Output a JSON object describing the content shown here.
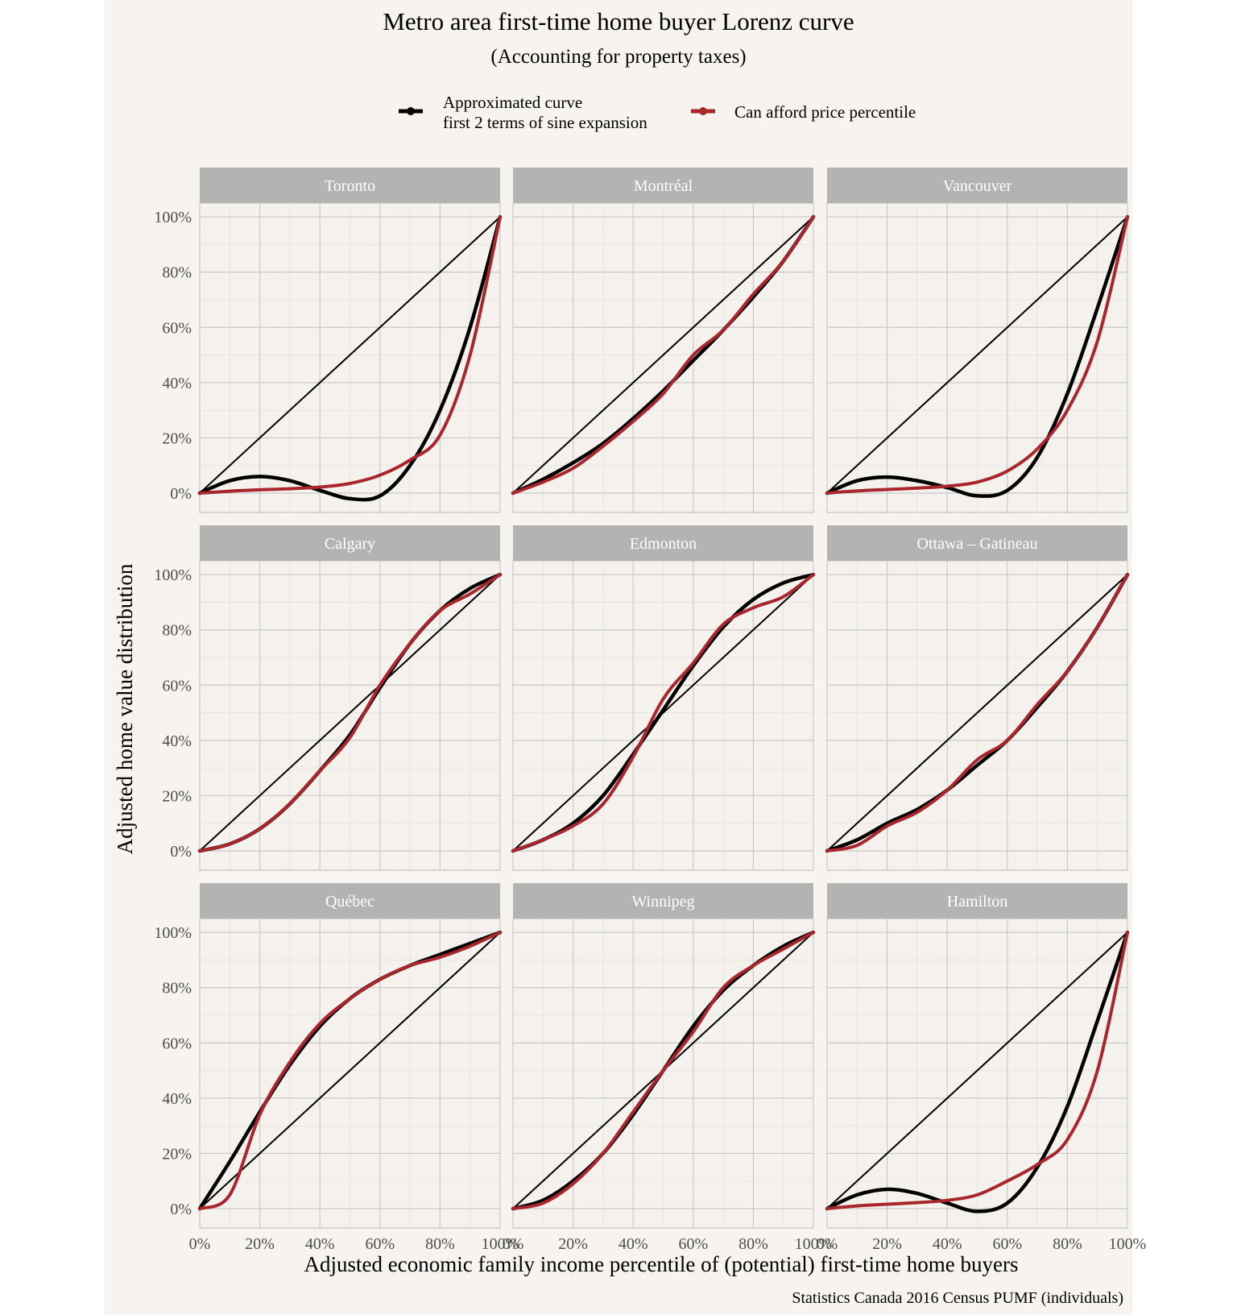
{
  "chart_data": {
    "type": "line",
    "title": "Metro area first-time home buyer Lorenz curve",
    "subtitle": "(Accounting for property taxes)",
    "xlabel": "Adjusted economic family income percentile of (potential) first-time home buyers",
    "ylabel": "Adjusted home value distribution",
    "caption": "Statistics Canada 2016 Census PUMF (individuals)",
    "legend": {
      "placement": "top",
      "entries": [
        {
          "label_line1": "Approximated curve",
          "label_line2": "first 2 terms of sine expansion",
          "color": "#000000"
        },
        {
          "label_line1": "Can afford price percentile",
          "label_line2": "",
          "color": "#a8262c"
        }
      ]
    },
    "x_ticks": [
      "0%",
      "20%",
      "40%",
      "60%",
      "80%",
      "100%"
    ],
    "y_ticks": [
      "0%",
      "20%",
      "40%",
      "60%",
      "80%",
      "100%"
    ],
    "xlim": [
      0,
      1
    ],
    "ylim": [
      -0.07,
      1.05
    ],
    "colors": {
      "panel_bg": "#f5f2ee",
      "page_bg": "#f7f4f0",
      "strip_bg": "#b3b3b3",
      "grid_major": "#c9c9c9",
      "grid_minor": "#e3e1de",
      "approx": "#000000",
      "afford": "#a8262c",
      "equality": "#000000"
    },
    "x": [
      0,
      0.1,
      0.2,
      0.3,
      0.4,
      0.5,
      0.6,
      0.7,
      0.8,
      0.9,
      1
    ],
    "panels": [
      {
        "name": "Toronto",
        "approx": [
          0,
          0.045,
          0.06,
          0.045,
          0.01,
          -0.02,
          -0.01,
          0.1,
          0.3,
          0.6,
          1
        ],
        "afford": [
          0,
          0.007,
          0.012,
          0.016,
          0.022,
          0.035,
          0.065,
          0.12,
          0.21,
          0.5,
          1
        ]
      },
      {
        "name": "Montréal",
        "approx": [
          0,
          0.05,
          0.11,
          0.18,
          0.27,
          0.37,
          0.48,
          0.59,
          0.71,
          0.84,
          1
        ],
        "afford": [
          0,
          0.04,
          0.09,
          0.17,
          0.26,
          0.36,
          0.5,
          0.59,
          0.72,
          0.84,
          1
        ]
      },
      {
        "name": "Vancouver",
        "approx": [
          0,
          0.045,
          0.058,
          0.045,
          0.02,
          -0.01,
          0.01,
          0.13,
          0.36,
          0.67,
          1
        ],
        "afford": [
          0,
          0.008,
          0.013,
          0.018,
          0.025,
          0.04,
          0.08,
          0.16,
          0.3,
          0.55,
          1
        ]
      },
      {
        "name": "Calgary",
        "approx": [
          0,
          0.025,
          0.08,
          0.17,
          0.29,
          0.42,
          0.59,
          0.75,
          0.87,
          0.95,
          1
        ],
        "afford": [
          0,
          0.025,
          0.08,
          0.17,
          0.29,
          0.41,
          0.6,
          0.75,
          0.87,
          0.93,
          1
        ]
      },
      {
        "name": "Edmonton",
        "approx": [
          0,
          0.04,
          0.1,
          0.2,
          0.35,
          0.51,
          0.67,
          0.81,
          0.91,
          0.97,
          1
        ],
        "afford": [
          0,
          0.04,
          0.09,
          0.17,
          0.34,
          0.55,
          0.68,
          0.82,
          0.88,
          0.92,
          1
        ]
      },
      {
        "name": "Ottawa – Gatineau",
        "approx": [
          0,
          0.04,
          0.1,
          0.15,
          0.22,
          0.31,
          0.4,
          0.52,
          0.65,
          0.81,
          1
        ],
        "afford": [
          0,
          0.02,
          0.09,
          0.14,
          0.22,
          0.33,
          0.4,
          0.53,
          0.65,
          0.81,
          1
        ]
      },
      {
        "name": "Québec",
        "approx": [
          0,
          0.17,
          0.35,
          0.52,
          0.66,
          0.76,
          0.83,
          0.88,
          0.92,
          0.96,
          1
        ],
        "afford": [
          0,
          0.05,
          0.34,
          0.53,
          0.67,
          0.76,
          0.83,
          0.88,
          0.91,
          0.95,
          1
        ]
      },
      {
        "name": "Winnipeg",
        "approx": [
          0,
          0.03,
          0.1,
          0.2,
          0.34,
          0.5,
          0.66,
          0.79,
          0.88,
          0.95,
          1
        ],
        "afford": [
          0,
          0.02,
          0.09,
          0.2,
          0.35,
          0.5,
          0.64,
          0.8,
          0.88,
          0.94,
          1
        ]
      },
      {
        "name": "Hamilton",
        "approx": [
          0,
          0.05,
          0.07,
          0.055,
          0.02,
          -0.01,
          0.02,
          0.15,
          0.37,
          0.68,
          1
        ],
        "afford": [
          0,
          0.01,
          0.016,
          0.022,
          0.03,
          0.05,
          0.1,
          0.16,
          0.25,
          0.5,
          1
        ]
      }
    ]
  }
}
